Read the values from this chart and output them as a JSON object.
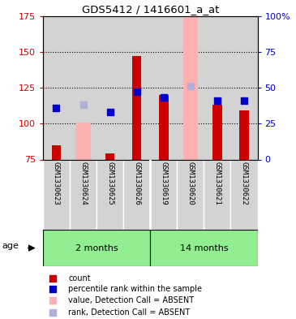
{
  "title": "GDS5412 / 1416601_a_at",
  "samples": [
    "GSM1330623",
    "GSM1330624",
    "GSM1330625",
    "GSM1330626",
    "GSM1330619",
    "GSM1330620",
    "GSM1330621",
    "GSM1330622"
  ],
  "ylim_left": [
    75,
    175
  ],
  "ylim_right": [
    0,
    100
  ],
  "yticks_left": [
    75,
    100,
    125,
    150,
    175
  ],
  "yticks_right": [
    0,
    25,
    50,
    75,
    100
  ],
  "ytick_labels_right": [
    "0",
    "25",
    "50",
    "75",
    "100%"
  ],
  "bar_bottom": 75,
  "red_values": [
    85,
    null,
    79,
    147,
    120,
    null,
    113,
    109
  ],
  "blue_values": [
    111,
    null,
    108,
    122,
    118,
    null,
    116,
    116
  ],
  "pink_bar_values": [
    null,
    101,
    null,
    null,
    null,
    175,
    null,
    null
  ],
  "lightblue_values": [
    null,
    113,
    null,
    null,
    null,
    126,
    null,
    null
  ],
  "bar_width": 0.35,
  "pink_bar_width": 0.55,
  "red_color": "#cc0000",
  "blue_color": "#0000cc",
  "pink_color": "#ffb0b0",
  "lightblue_color": "#b0b0dd",
  "col_bg_color": "#d3d3d3",
  "left_label_color": "#cc0000",
  "right_label_color": "#0000cc",
  "grid_lines": [
    100,
    125,
    150
  ],
  "group1_label": "2 months",
  "group2_label": "14 months",
  "group_color": "#90ee90",
  "age_label": "age",
  "legend_items": [
    {
      "color": "#cc0000",
      "label": "count"
    },
    {
      "color": "#0000cc",
      "label": "percentile rank within the sample"
    },
    {
      "color": "#ffb0b0",
      "label": "value, Detection Call = ABSENT"
    },
    {
      "color": "#b0b0dd",
      "label": "rank, Detection Call = ABSENT"
    }
  ]
}
